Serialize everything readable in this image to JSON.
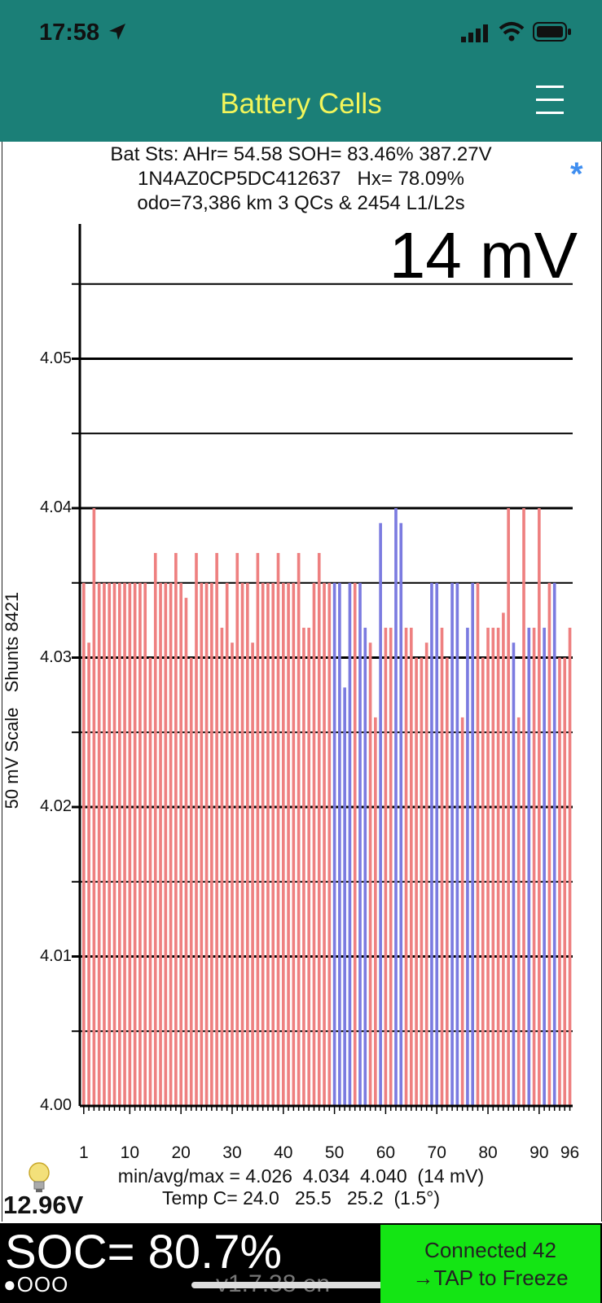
{
  "status_bar": {
    "time": "17:58"
  },
  "nav": {
    "title": "Battery Cells"
  },
  "header": {
    "line1": "Bat Sts: AHr= 54.58 SOH= 83.46% 387.27V",
    "line2": "1N4AZ0CP5DC412637   Hx= 78.09%",
    "line3": "odo=73,386 km 3 QCs & 2454 L1/L2s",
    "asterisk": "*"
  },
  "chart_data": {
    "type": "bar",
    "title": "14 mV",
    "ylabel": "50 mV Scale   Shunts 8421",
    "ylim": [
      4.0,
      4.055
    ],
    "y_ticks": [
      "4.00",
      "4.01",
      "4.02",
      "4.03",
      "4.04",
      "4.05"
    ],
    "x_ticks": [
      "1",
      "10",
      "20",
      "30",
      "40",
      "50",
      "60",
      "70",
      "80",
      "90",
      "96"
    ],
    "colors": {
      "normal": "#ee8080",
      "shunted": "#7b7be0"
    },
    "cells": [
      4.035,
      4.031,
      4.04,
      4.035,
      4.035,
      4.035,
      4.035,
      4.035,
      4.035,
      4.035,
      4.035,
      4.035,
      4.035,
      4.03,
      4.037,
      4.035,
      4.035,
      4.035,
      4.037,
      4.035,
      4.034,
      4.03,
      4.037,
      4.035,
      4.035,
      4.035,
      4.037,
      4.032,
      4.035,
      4.031,
      4.037,
      4.035,
      4.035,
      4.031,
      4.037,
      4.035,
      4.035,
      4.035,
      4.037,
      4.035,
      4.035,
      4.035,
      4.037,
      4.032,
      4.032,
      4.035,
      4.037,
      4.035,
      4.035,
      4.035,
      4.035,
      4.028,
      4.035,
      4.035,
      4.035,
      4.032,
      4.031,
      4.026,
      4.039,
      4.032,
      4.032,
      4.04,
      4.039,
      4.032,
      4.032,
      4.03,
      4.03,
      4.031,
      4.035,
      4.035,
      4.032,
      4.03,
      4.035,
      4.035,
      4.026,
      4.032,
      4.035,
      4.035,
      4.03,
      4.032,
      4.032,
      4.032,
      4.033,
      4.04,
      4.031,
      4.026,
      4.04,
      4.032,
      4.032,
      4.04,
      4.032,
      4.035,
      4.035,
      4.03,
      4.03,
      4.032
    ],
    "shunted": [
      50,
      51,
      52,
      53,
      55,
      56,
      59,
      62,
      63,
      69,
      70,
      73,
      74,
      76,
      77,
      85,
      88,
      91,
      93
    ]
  },
  "stats": {
    "min_avg_max": "min/avg/max = 4.026  4.034  4.040  (14 mV)",
    "temp": "Temp C= 24.0   25.5   25.2  (1.5°)"
  },
  "aux_voltage": "12.96V",
  "soc": "SOC= 80.7%",
  "dots": "●OOO",
  "version": "v1.7.38 en",
  "connect": {
    "line1": "Connected 42",
    "line2": "→TAP to Freeze"
  }
}
